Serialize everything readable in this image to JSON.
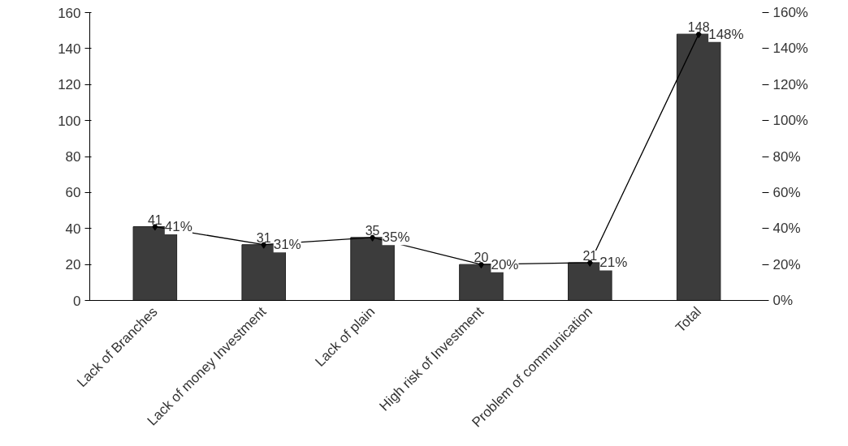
{
  "chart_data": {
    "type": "bar",
    "categories": [
      "Lack of Branches",
      "Lack of money Investment",
      "Lack of plain",
      "High risk of Investment",
      "Problem of communication",
      "Total"
    ],
    "series": [
      {
        "color": "#3c3c3c",
        "values": [
          41,
          31,
          35,
          20,
          21,
          148
        ],
        "value_labels": [
          "41",
          "31",
          "35",
          "20",
          "21",
          "148"
        ]
      },
      {
        "type": "line",
        "axis": "y2",
        "color": "#000000",
        "values": [
          41,
          31,
          35,
          20,
          21,
          148
        ],
        "value_labels": [
          "41%",
          "31%",
          "35%",
          "20%",
          "21%",
          "148%"
        ],
        "marker": "diamond"
      }
    ],
    "ylim": [
      0,
      160
    ],
    "yticks": [
      0,
      20,
      40,
      60,
      80,
      100,
      120,
      140,
      160
    ],
    "y2lim": [
      0,
      160
    ],
    "y2ticks": [
      {
        "value": 0,
        "label": "0%"
      },
      {
        "value": 20,
        "label": "20%"
      },
      {
        "value": 40,
        "label": "40%"
      },
      {
        "value": 60,
        "label": "60%"
      },
      {
        "value": 80,
        "label": "80%"
      },
      {
        "value": 100,
        "label": "100%"
      },
      {
        "value": 120,
        "label": "120%"
      },
      {
        "value": 140,
        "label": "140%"
      },
      {
        "value": 160,
        "label": "160%"
      }
    ],
    "grid": false
  }
}
